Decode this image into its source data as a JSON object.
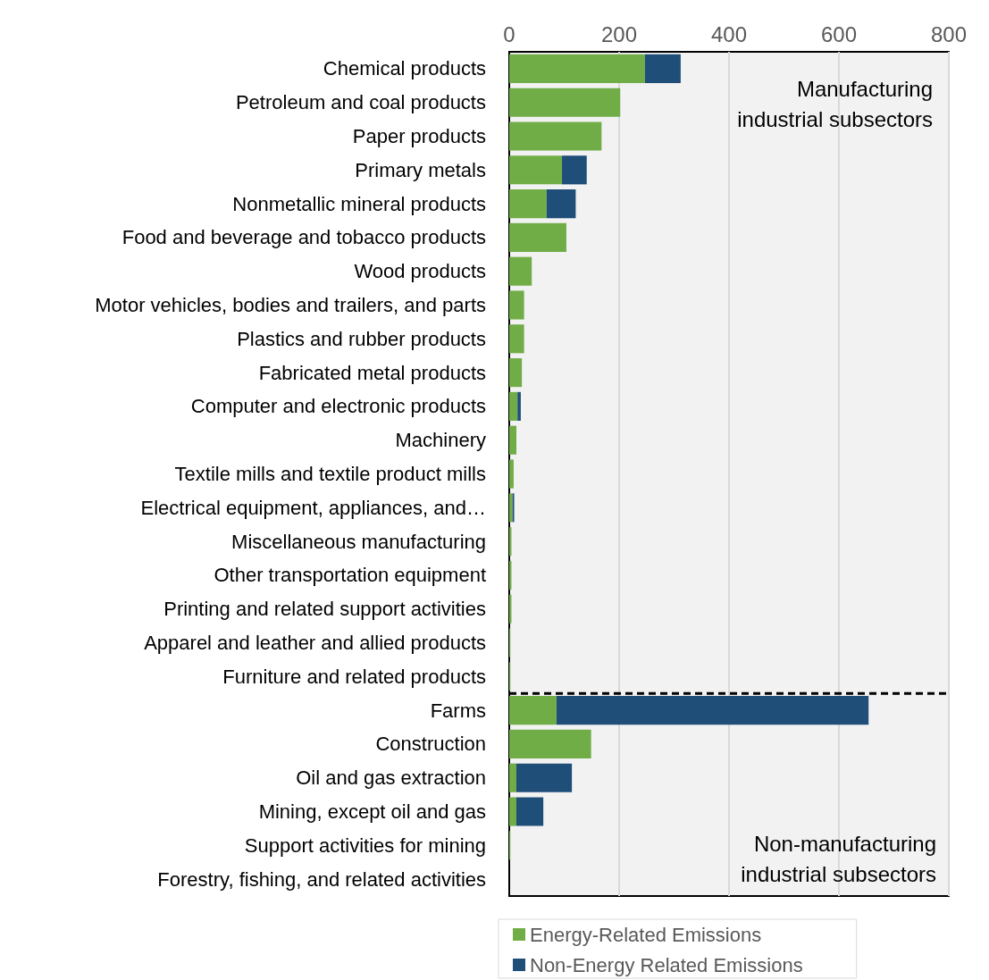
{
  "chart_data": {
    "type": "bar",
    "orientation": "horizontal",
    "stacked": true,
    "categories": [
      "Chemical products",
      "Petroleum and coal products",
      "Paper products",
      "Primary metals",
      "Nonmetallic mineral products",
      "Food and beverage and tobacco products",
      "Wood products",
      "Motor vehicles, bodies and trailers, and parts",
      "Plastics and rubber products",
      "Fabricated metal products",
      "Computer and electronic products",
      "Machinery",
      "Textile mills and textile product mills",
      "Electrical equipment, appliances, and…",
      "Miscellaneous manufacturing",
      "Other transportation equipment",
      "Printing and related support activities",
      "Apparel and leather and allied products",
      "Furniture and related products",
      "Farms",
      "Construction",
      "Oil and gas extraction",
      "Mining, except oil and gas",
      "Support activities for mining",
      "Forestry, fishing, and related activities"
    ],
    "series": [
      {
        "name": "Energy-Related Emissions",
        "color": "#70ad47",
        "values": [
          247,
          202,
          168,
          96,
          68,
          104,
          41,
          27,
          27,
          23,
          15,
          13,
          8,
          6,
          4,
          4,
          4,
          2,
          2,
          86,
          149,
          13,
          13,
          2,
          null
        ]
      },
      {
        "name": "Non-Energy Related Emissions",
        "color": "#1f4e79",
        "values": [
          65,
          null,
          null,
          45,
          53,
          null,
          null,
          null,
          null,
          null,
          6,
          null,
          null,
          3,
          null,
          null,
          null,
          null,
          null,
          568,
          null,
          101,
          49,
          null,
          null
        ]
      }
    ],
    "ref_lines": [
      {
        "axis": "y",
        "value": "Farms",
        "color": "#000000",
        "line_style": "dashed"
      }
    ],
    "xlim": [
      0,
      800
    ],
    "xticks": [
      0,
      200,
      400,
      600,
      800
    ],
    "grid": "x",
    "legend": "bottom",
    "annotations": [
      "Manufacturing\nindustrial subsectors",
      "Non-manufacturing\nindustrial subsectors"
    ]
  }
}
